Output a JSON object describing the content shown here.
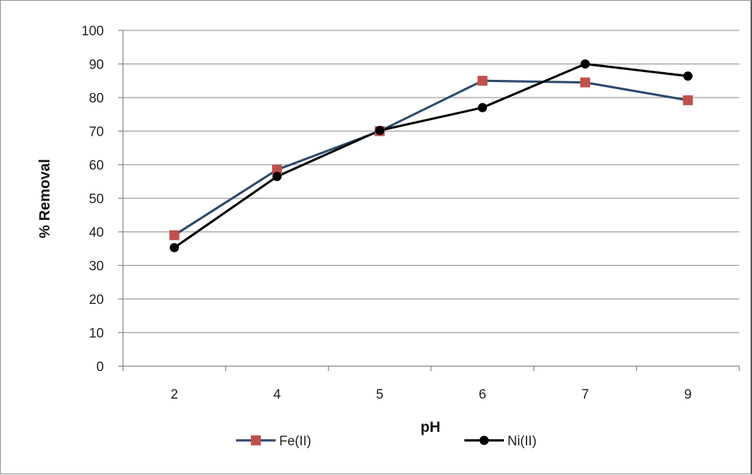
{
  "chart_data": {
    "type": "line",
    "title": "",
    "xlabel": "pH",
    "ylabel": "% Removal",
    "categories": [
      "2",
      "4",
      "5",
      "6",
      "7",
      "9"
    ],
    "ylim": [
      0,
      100
    ],
    "yticks": [
      0,
      10,
      20,
      30,
      40,
      50,
      60,
      70,
      80,
      90,
      100
    ],
    "grid": "horizontal",
    "legend_position": "bottom",
    "series": [
      {
        "name": "Fe(II)",
        "values": [
          39,
          58.5,
          70,
          85,
          84.5,
          79.2
        ],
        "color": "#2e4a6b",
        "marker": "square",
        "marker_color": "#c0504d"
      },
      {
        "name": "Ni(II)",
        "values": [
          35.3,
          56.5,
          70.2,
          77,
          90,
          86.4
        ],
        "color": "#000000",
        "marker": "circle",
        "marker_color": "#000000"
      }
    ]
  }
}
